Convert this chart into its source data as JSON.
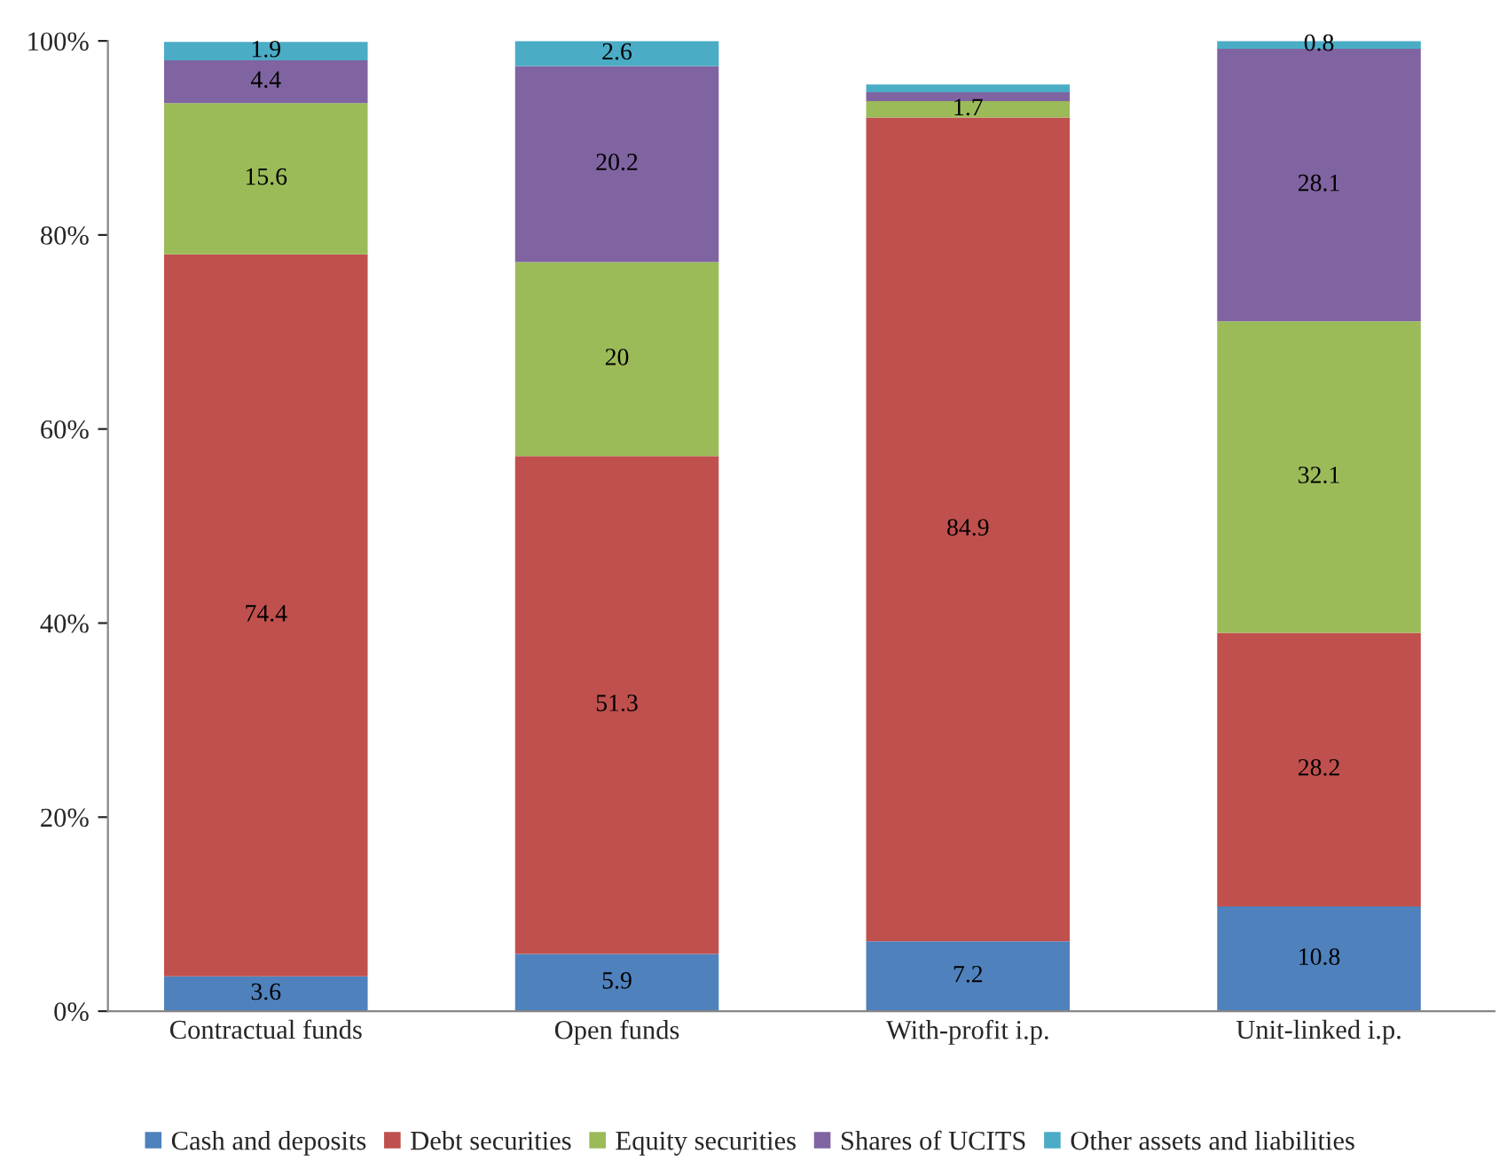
{
  "chart_data": {
    "type": "bar",
    "stacked": true,
    "categories": [
      "Contractual funds",
      "Open funds",
      "With-profit i.p.",
      "Unit-linked i.p."
    ],
    "series": [
      {
        "name": "Cash and deposits",
        "color": "#4f81bd",
        "values": [
          3.6,
          5.9,
          7.2,
          10.8
        ],
        "value_labels": [
          "3.6",
          "5.9",
          "7.2",
          "10.8"
        ]
      },
      {
        "name": "Debt securities",
        "color": "#c0504d",
        "values": [
          74.4,
          51.3,
          84.9,
          28.2
        ],
        "value_labels": [
          "74.4",
          "51.3",
          "84.9",
          "28.2"
        ]
      },
      {
        "name": "Equity securities",
        "color": "#9bbb59",
        "values": [
          15.6,
          20,
          1.7,
          32.1
        ],
        "value_labels": [
          "15.6",
          "20",
          "1.7",
          "32.1"
        ]
      },
      {
        "name": "Shares of UCITS",
        "color": "#8064a2",
        "values": [
          4.4,
          20.2,
          0.9,
          28.1
        ],
        "value_labels": [
          "4.4",
          "20.2",
          null,
          "28.1"
        ]
      },
      {
        "name": "Other assets and liabilities",
        "color": "#4bacc6",
        "values": [
          1.9,
          2.6,
          0.8,
          0.8
        ],
        "value_labels": [
          "1.9",
          "2.6",
          null,
          "0.8"
        ]
      }
    ],
    "ylim": [
      0,
      100
    ],
    "yticks": [
      {
        "value": 0,
        "label": "0%"
      },
      {
        "value": 20,
        "label": "20%"
      },
      {
        "value": 40,
        "label": "40%"
      },
      {
        "value": 60,
        "label": "60%"
      },
      {
        "value": 80,
        "label": "80%"
      },
      {
        "value": 100,
        "label": "100%"
      }
    ],
    "grid": false,
    "legend": "bottom"
  }
}
